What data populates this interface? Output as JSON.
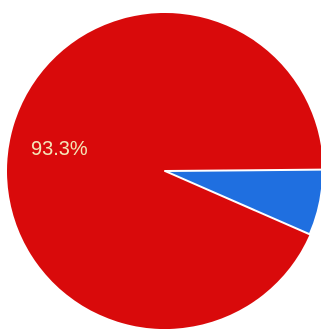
{
  "chart_data": {
    "type": "pie",
    "title": "",
    "slices": [
      {
        "value": 93.3,
        "label": "93.3%",
        "color": "#d90a0b"
      },
      {
        "value": 6.7,
        "label": "",
        "color": "#1f6fe0"
      }
    ],
    "label_color": "#f4e6b8",
    "edge_color": "#ffffff"
  }
}
